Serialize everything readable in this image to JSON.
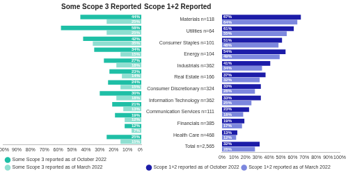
{
  "chart_data": [
    {
      "type": "bar",
      "title": "Some Scope 3 Reported",
      "orientation": "horizontal",
      "categories": [
        "Materials n=118",
        "Utilities n=64",
        "Consumer Staples n=101",
        "Energy n=104",
        "Industrials n=362",
        "Real Estate n=166",
        "Consumer Discretionary n=324",
        "Information Technology n=362",
        "Communication Services n=111",
        "Financials n=385",
        "Health Care n=468",
        "Total n=2,565"
      ],
      "series": [
        {
          "name": "Some Scope 3 reported as of October 2022",
          "color": "#1fbfa6",
          "values": [
            44,
            58,
            42,
            34,
            27,
            23,
            24,
            30,
            21,
            19,
            12,
            25
          ],
          "value_labels": [
            "44%",
            "58%",
            "42%",
            "34%",
            "27%",
            "23%",
            "24%",
            "30%",
            "21%",
            "19%",
            "12%",
            "25%"
          ]
        },
        {
          "name": "Some Scope 3 reported as of March 2022",
          "color": "#8fdfd1",
          "values": [
            25,
            25,
            35,
            15,
            18,
            14,
            15,
            18,
            13,
            12,
            7,
            15
          ],
          "value_labels": [
            "25%",
            "25%",
            "35%",
            "15%",
            "18%",
            "14%",
            "15%",
            "18%",
            "13%",
            "12%",
            "7%",
            "15%"
          ]
        }
      ],
      "xlim": [
        100,
        0
      ],
      "xticks": [
        {
          "value": 0,
          "label": "0%"
        },
        {
          "value": 10,
          "label": "10%"
        },
        {
          "value": 20,
          "label": "20%"
        },
        {
          "value": 30,
          "label": "30%"
        },
        {
          "value": 40,
          "label": "40%"
        },
        {
          "value": 50,
          "label": "50%"
        },
        {
          "value": 60,
          "label": "60%"
        },
        {
          "value": 70,
          "label": "70%"
        },
        {
          "value": 80,
          "label": "80%"
        },
        {
          "value": 90,
          "label": "90%"
        },
        {
          "value": 100,
          "label": "100%"
        }
      ],
      "grid": false,
      "legend": "bottom",
      "data_labels": true,
      "tick_labels": "x"
    },
    {
      "type": "bar",
      "title": "Scope 1+2 Reported",
      "orientation": "horizontal",
      "categories": [
        "Materials n=118",
        "Utilities n=64",
        "Consumer Staples n=101",
        "Energy n=104",
        "Industrials n=362",
        "Real Estate n=166",
        "Consumer Discretionary n=324",
        "Information Technology n=362",
        "Communication Services n=111",
        "Financials n=385",
        "Health Care n=468",
        "Total n=2,565"
      ],
      "series": [
        {
          "name": "Scope 1+2 reported as of October 2022",
          "color": "#1c1ca8",
          "values": [
            67,
            61,
            51,
            54,
            41,
            37,
            33,
            33,
            23,
            19,
            13,
            32
          ],
          "value_labels": [
            "67%",
            "61%",
            "51%",
            "54%",
            "41%",
            "37%",
            "33%",
            "33%",
            "23%",
            "19%",
            "13%",
            "32%"
          ]
        },
        {
          "name": "Scope 1+2 reported as of March 2022",
          "color": "#7c87de",
          "values": [
            64,
            55,
            48,
            49,
            34,
            32,
            28,
            25,
            18,
            17,
            12,
            28
          ],
          "value_labels": [
            "64%",
            "55%",
            "48%",
            "49%",
            "34%",
            "32%",
            "28%",
            "25%",
            "18%",
            "17%",
            "12%",
            "28%"
          ]
        }
      ],
      "xlim": [
        0,
        100
      ],
      "xticks": [
        {
          "value": 0,
          "label": "0%"
        },
        {
          "value": 10,
          "label": "10%"
        },
        {
          "value": 20,
          "label": "20%"
        },
        {
          "value": 30,
          "label": "30%"
        },
        {
          "value": 40,
          "label": "40%"
        },
        {
          "value": 50,
          "label": "50%"
        },
        {
          "value": 60,
          "label": "60%"
        },
        {
          "value": 70,
          "label": "70%"
        },
        {
          "value": 80,
          "label": "80%"
        },
        {
          "value": 90,
          "label": "90%"
        },
        {
          "value": 100,
          "label": "100%"
        }
      ],
      "grid": false,
      "legend": "bottom",
      "data_labels": true
    }
  ]
}
